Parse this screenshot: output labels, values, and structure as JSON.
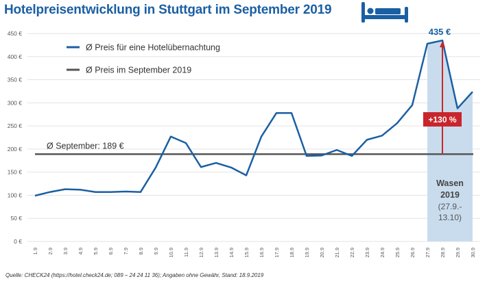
{
  "header": {
    "title": "Hotelpreisentwicklung in Stuttgart im September 2019",
    "icon": "bed-icon"
  },
  "colors": {
    "title": "#1a5fa3",
    "series_line": "#1a5fa3",
    "average_line": "#555555",
    "highlight_band": "#c9dced",
    "annotation": "#c8262c",
    "grid": "#e3e3e3"
  },
  "footer": {
    "source": "Quelle: CHECK24 (https://hotel.check24.de; 089 – 24 24 11 36); Angaben ohne Gewähr, Stand: 18.9.2019"
  },
  "chart_data": {
    "type": "line",
    "title": "Hotelpreisentwicklung in Stuttgart im September 2019",
    "xlabel": "",
    "ylabel": "",
    "ylim": [
      0,
      450
    ],
    "yticks": [
      0,
      50,
      100,
      150,
      200,
      250,
      300,
      350,
      400,
      450
    ],
    "ytick_labels": [
      "0 €",
      "50 €",
      "100 €",
      "150 €",
      "200 €",
      "250 €",
      "300 €",
      "350 €",
      "400 €",
      "450 €"
    ],
    "grid": true,
    "legend_position": "top-left",
    "categories": [
      "1.9",
      "2.9",
      "3.9",
      "4.9",
      "5.9",
      "6.9",
      "7.9",
      "8.9",
      "9.9",
      "10.9",
      "11.9",
      "12.9",
      "13.9",
      "14.9",
      "15.9",
      "16.9",
      "17.9",
      "18.9",
      "19.9",
      "20.9",
      "21.9",
      "22.9",
      "23.9",
      "24.9",
      "25.9",
      "26.9",
      "27.9",
      "28.9",
      "29.9",
      "30.9"
    ],
    "series": [
      {
        "name": "Ø Preis für eine Hotelübernachtung",
        "values": [
          99,
          107,
          113,
          112,
          107,
          107,
          108,
          107,
          160,
          227,
          213,
          161,
          170,
          160,
          143,
          227,
          278,
          278,
          185,
          186,
          198,
          185,
          220,
          229,
          256,
          295,
          428,
          435,
          288,
          324
        ]
      },
      {
        "name": "Ø Preis im September 2019",
        "values": [
          189,
          189,
          189,
          189,
          189,
          189,
          189,
          189,
          189,
          189,
          189,
          189,
          189,
          189,
          189,
          189,
          189,
          189,
          189,
          189,
          189,
          189,
          189,
          189,
          189,
          189,
          189,
          189,
          189,
          189
        ]
      }
    ],
    "annotations": {
      "average_label": "Ø September: 189 €",
      "peak_label": "435 €",
      "increase_label": "+130 %",
      "highlight": {
        "from": "27.9",
        "to": "30.9",
        "line1": "Wasen",
        "line2": "2019",
        "line3": "(27.9.-",
        "line4": "13.10)"
      }
    }
  }
}
